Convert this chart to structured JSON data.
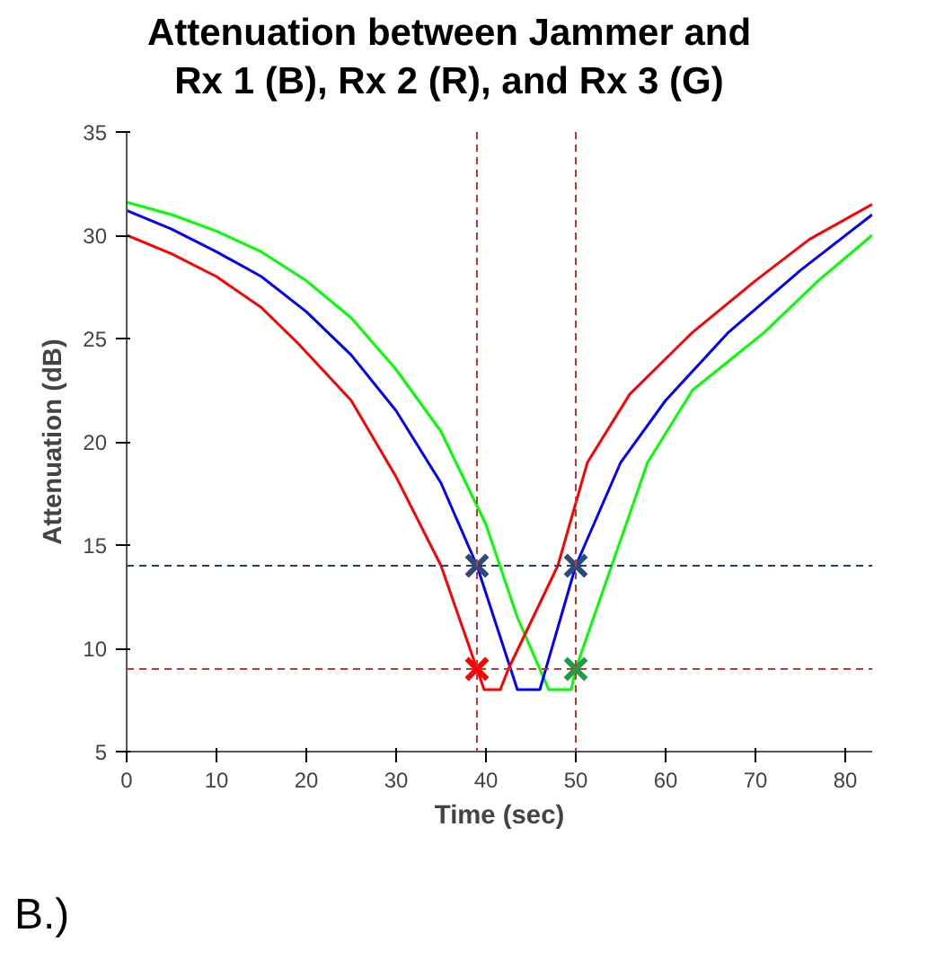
{
  "chart_data": {
    "type": "line",
    "title": "Attenuation between Jammer and\nRx 1 (B), Rx 2 (R), and Rx 3 (G)",
    "xlabel": "Time (sec)",
    "ylabel": "Attenuation (dB)",
    "annotations": [
      "B.)"
    ],
    "xlim": [
      0,
      83
    ],
    "ylim": [
      5,
      35
    ],
    "xticks": [
      0,
      10,
      20,
      30,
      40,
      50,
      60,
      70,
      80
    ],
    "yticks": [
      5,
      10,
      15,
      20,
      25,
      30,
      35
    ],
    "grid": false,
    "marker": "none",
    "line_style": "solid",
    "series": [
      {
        "color": "#00ff00",
        "x": [
          0,
          5,
          10,
          15,
          20,
          25,
          30,
          35,
          40,
          43.5,
          47,
          49.5,
          50,
          54,
          58,
          63,
          71,
          77,
          83
        ],
        "values": [
          31.6,
          31,
          30.2,
          29.2,
          27.8,
          26,
          23.5,
          20.5,
          16,
          11.5,
          8,
          8,
          9,
          14,
          19,
          22.5,
          25.3,
          27.8,
          30
        ]
      },
      {
        "color": "#0000ff",
        "x": [
          0,
          5,
          10,
          15,
          20,
          25,
          30,
          35,
          39,
          43.5,
          46,
          50,
          55,
          60,
          67,
          75,
          83
        ],
        "values": [
          31.2,
          30.3,
          29.2,
          28,
          26.3,
          24.2,
          21.5,
          18,
          14,
          8,
          8,
          14,
          19,
          22,
          25.3,
          28.3,
          31
        ]
      },
      {
        "color": "#ff0000",
        "x": [
          0,
          5,
          10,
          15,
          19,
          25,
          30,
          35,
          39,
          39.8,
          41.6,
          42.5,
          48,
          51.3,
          56,
          63,
          70,
          76,
          83
        ],
        "values": [
          30,
          29.1,
          28,
          26.5,
          24.8,
          22,
          18.3,
          14,
          9,
          8,
          8,
          9,
          14,
          19,
          22.3,
          25.3,
          27.8,
          29.8,
          31.5
        ]
      },
      {
        "type": "scatter",
        "marker": "cross",
        "color": "#2e4a7a",
        "x": [
          39,
          50
        ],
        "values": [
          14,
          14
        ]
      },
      {
        "type": "scatter",
        "marker": "cross",
        "color": "#ff0000",
        "x": [
          39
        ],
        "values": [
          9
        ]
      },
      {
        "type": "scatter",
        "marker": "cross",
        "color": "#1a9e4a",
        "x": [
          50
        ],
        "values": [
          9
        ]
      }
    ],
    "ref_lines": [
      {
        "axis": "y",
        "value": 14,
        "color": "#1f3f7f",
        "line_style": "dashed"
      },
      {
        "axis": "y",
        "value": 9,
        "color": "#cc3333",
        "line_style": "dashed"
      },
      {
        "axis": "x",
        "value": 39,
        "color": "#cc3333",
        "line_style": "dashed"
      },
      {
        "axis": "x",
        "value": 50,
        "color": "#cc3333",
        "line_style": "dashed"
      }
    ]
  }
}
